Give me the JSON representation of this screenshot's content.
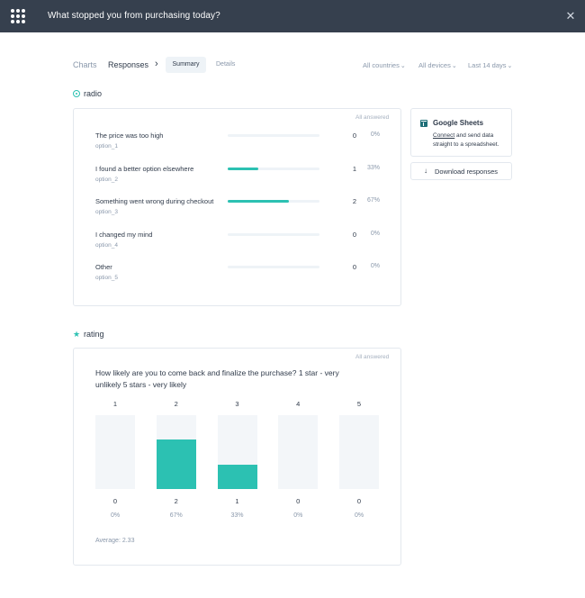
{
  "header": {
    "title": "What stopped you from purchasing today?",
    "close_icon": "close-icon",
    "logo_icon": "dot-grid-logo"
  },
  "nav": {
    "charts": "Charts",
    "responses": "Responses",
    "separator": "›",
    "tab_summary": "Summary",
    "tab_details": "Details",
    "filters": {
      "country": "All countries",
      "device": "All devices",
      "period": "Last 14 days",
      "caret": "⌄"
    }
  },
  "colors": {
    "accent": "#2cc1b2",
    "topbar": "#36404e",
    "muted_text": "#8a98ab",
    "track": "#eef3f7"
  },
  "radio_section": {
    "label": "radio",
    "icon": "radio-icon",
    "all_answered": "All answered",
    "options": [
      {
        "label": "The price was too high",
        "code": "option_1",
        "count": "0",
        "pct": "0%",
        "share": 0
      },
      {
        "label": "I found a better option elsewhere",
        "code": "option_2",
        "count": "1",
        "pct": "33%",
        "share": 0.33
      },
      {
        "label": "Something went wrong during checkout",
        "code": "option_3",
        "count": "2",
        "pct": "67%",
        "share": 0.67
      },
      {
        "label": "I changed my mind",
        "code": "option_4",
        "count": "0",
        "pct": "0%",
        "share": 0
      },
      {
        "label": "Other",
        "code": "option_5",
        "count": "0",
        "pct": "0%",
        "share": 0
      }
    ]
  },
  "sidebar": {
    "sheets_title": "Google Sheets",
    "sheets_icon": "google-sheets-icon",
    "connect_link": "Connect",
    "sheets_desc": " and send data straight to a spreadsheet.",
    "download_icon": "download-icon",
    "download_label": "Download responses"
  },
  "rating_section": {
    "label": "rating",
    "icon": "star-icon",
    "star": "★",
    "all_answered": "All answered",
    "question": "How likely are you to come back and finalize the purchase? 1 star - very unlikely 5 stars - very likely",
    "columns": [
      {
        "label": "1",
        "count": "0",
        "pct": "0%",
        "share": 0
      },
      {
        "label": "2",
        "count": "2",
        "pct": "67%",
        "share": 0.67
      },
      {
        "label": "3",
        "count": "1",
        "pct": "33%",
        "share": 0.33
      },
      {
        "label": "4",
        "count": "0",
        "pct": "0%",
        "share": 0
      },
      {
        "label": "5",
        "count": "0",
        "pct": "0%",
        "share": 0
      }
    ],
    "average": "Average: 2.33"
  }
}
